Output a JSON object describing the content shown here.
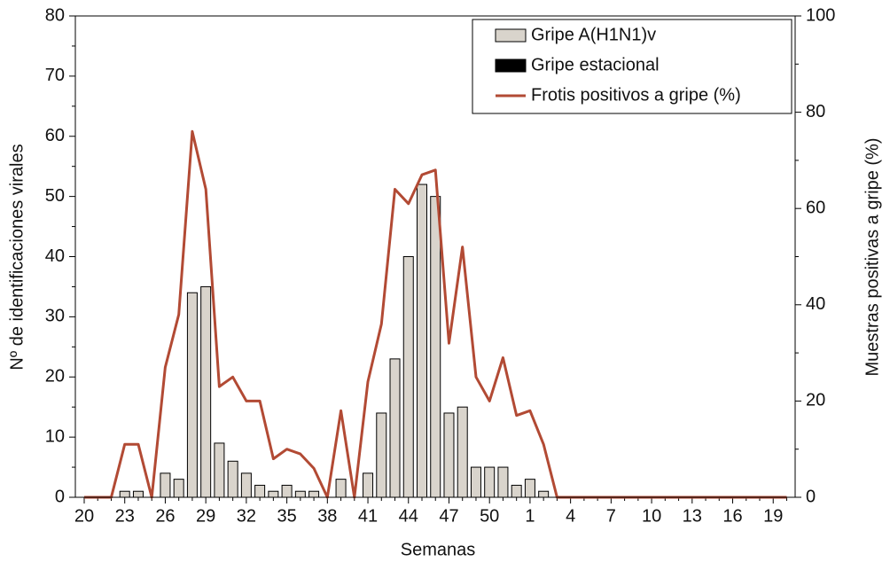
{
  "chart_data": {
    "type": "bar-line",
    "xlabel": "Semanas",
    "ylabel": "Nº de identificaciones virales",
    "y2label": "Muestras positivas a gripe (%)",
    "categories": [
      "20",
      null,
      null,
      "23",
      null,
      null,
      "26",
      null,
      null,
      "29",
      null,
      null,
      "32",
      null,
      null,
      "35",
      null,
      null,
      "38",
      null,
      null,
      "41",
      null,
      null,
      "44",
      null,
      null,
      "47",
      null,
      null,
      "50",
      null,
      null,
      "1",
      null,
      null,
      "4",
      null,
      null,
      "7",
      null,
      null,
      "10",
      null,
      null,
      "13",
      null,
      null,
      "16",
      null,
      null,
      "19",
      null
    ],
    "series": [
      {
        "name": "Gripe A(H1N1)v",
        "color": "#d9d4cc",
        "kind": "bar",
        "values": [
          0,
          0,
          0,
          1,
          1,
          0,
          4,
          3,
          34,
          35,
          9,
          6,
          4,
          2,
          1,
          2,
          1,
          1,
          0,
          3,
          0,
          4,
          14,
          23,
          40,
          52,
          50,
          14,
          15,
          5,
          5,
          5,
          2,
          3,
          1,
          0,
          0,
          0,
          0,
          0,
          0,
          0,
          0,
          0,
          0,
          0,
          0,
          0,
          0,
          0,
          0,
          0,
          0
        ]
      },
      {
        "name": "Gripe estacional",
        "color": "#000000",
        "kind": "bar",
        "values": [
          0,
          0,
          0,
          0,
          0,
          0,
          0,
          0,
          0,
          0,
          0,
          0,
          0,
          0,
          0,
          0,
          0,
          0,
          0,
          0,
          0,
          0,
          0,
          0,
          0,
          0,
          0,
          0,
          0,
          0,
          0,
          0,
          0,
          0,
          0,
          0,
          0,
          0,
          0,
          0,
          0,
          0,
          0,
          0,
          0,
          0,
          0,
          0,
          0,
          0,
          0,
          0,
          0
        ]
      },
      {
        "name": "Frotis positivos a gripe (%)",
        "color": "#b24a34",
        "kind": "line",
        "axis": "y2",
        "values": [
          0,
          0,
          0,
          11,
          11,
          0,
          27,
          38,
          76,
          64,
          23,
          25,
          20,
          20,
          8,
          10,
          9,
          6,
          0,
          18,
          0,
          24,
          36,
          64,
          61,
          67,
          68,
          32,
          52,
          25,
          20,
          29,
          17,
          18,
          11,
          0,
          0,
          0,
          0,
          0,
          0,
          0,
          0,
          0,
          0,
          0,
          0,
          0,
          0,
          0,
          0,
          0,
          0
        ]
      }
    ],
    "ylim": [
      0,
      80
    ],
    "yticks": [
      0,
      10,
      20,
      30,
      40,
      50,
      60,
      70,
      80
    ],
    "y2lim": [
      0,
      100
    ],
    "y2ticks": [
      0,
      20,
      40,
      60,
      80,
      100
    ],
    "legend": "upper right"
  }
}
